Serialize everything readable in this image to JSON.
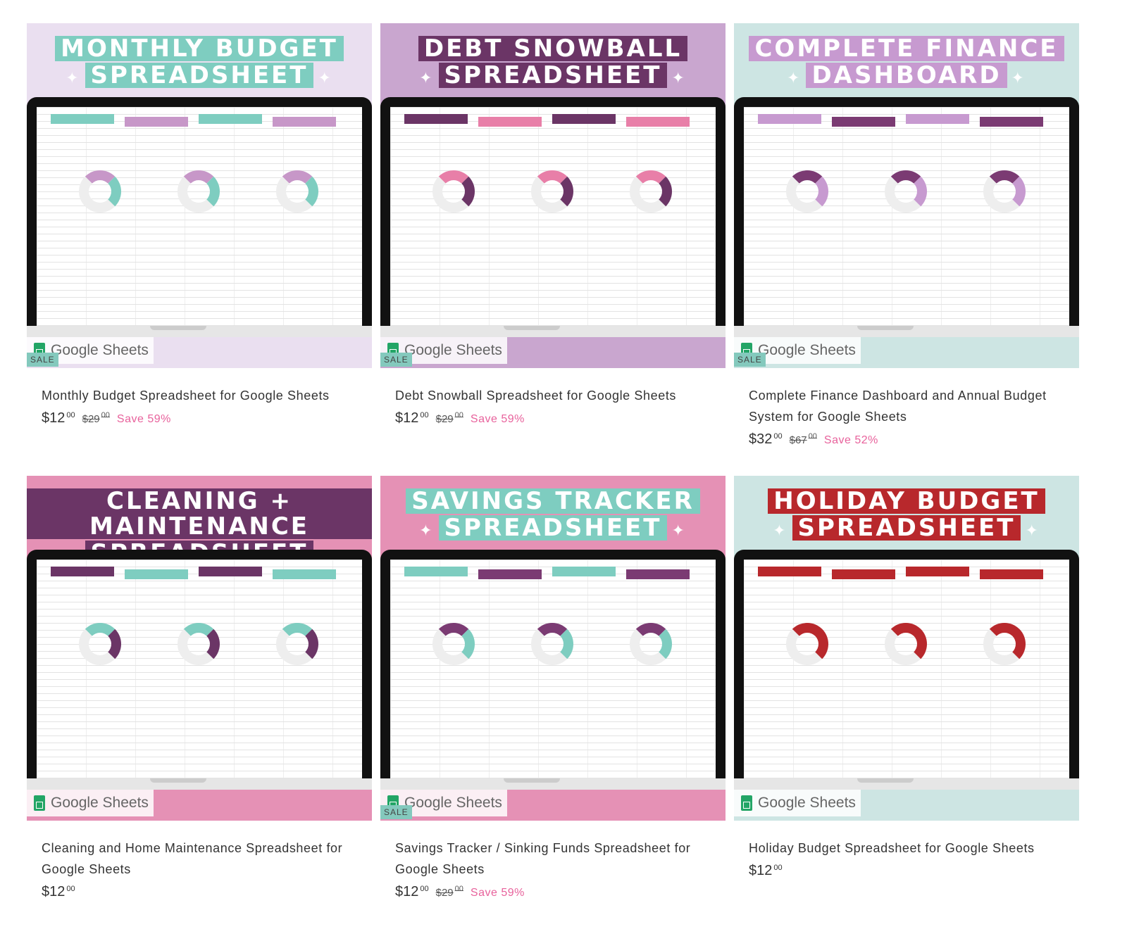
{
  "products": [
    {
      "banner": [
        "MONTHLY BUDGET",
        "SPREADSHEET"
      ],
      "bg": "#eadff0",
      "banner_color": "#7ecdc0",
      "accent": "#c797c8",
      "platform": "Google Sheets",
      "sale_badge": "SALE",
      "title": "Monthly Budget Spreadsheet for Google Sheets",
      "price": "$12",
      "price_cents": "00",
      "compare_price": "$29",
      "compare_cents": "00",
      "save": "Save 59%"
    },
    {
      "banner": [
        "DEBT SNOWBALL",
        "SPREADSHEET"
      ],
      "bg": "#c9a6cf",
      "banner_color": "#6b3566",
      "accent": "#e87fa8",
      "platform": "Google Sheets",
      "sale_badge": "SALE",
      "title": "Debt Snowball Spreadsheet for Google Sheets",
      "price": "$12",
      "price_cents": "00",
      "compare_price": "$29",
      "compare_cents": "00",
      "save": "Save 59%"
    },
    {
      "banner": [
        "COMPLETE FINANCE",
        "DASHBOARD"
      ],
      "bg": "#cde5e3",
      "banner_color": "#c79ad0",
      "accent": "#7b3b73",
      "platform": "Google Sheets",
      "sale_badge": "SALE",
      "title": "Complete Finance Dashboard and Annual Budget System for Google Sheets",
      "price": "$32",
      "price_cents": "00",
      "compare_price": "$67",
      "compare_cents": "00",
      "save": "Save 52%"
    },
    {
      "banner": [
        "CLEANING + MAINTENANCE",
        "SPREADSHEET"
      ],
      "bg": "#e591b5",
      "banner_color": "#6b3566",
      "accent": "#7ecdc0",
      "platform": "Google Sheets",
      "sale_badge": "",
      "title": "Cleaning and Home Maintenance Spreadsheet for Google Sheets",
      "price": "$12",
      "price_cents": "00",
      "compare_price": "",
      "compare_cents": "",
      "save": ""
    },
    {
      "banner": [
        "SAVINGS TRACKER",
        "SPREADSHEET"
      ],
      "bg": "#e591b5",
      "banner_color": "#7ecdc0",
      "accent": "#7b3b73",
      "platform": "Google Sheets",
      "sale_badge": "SALE",
      "title": "Savings Tracker / Sinking Funds Spreadsheet for Google Sheets",
      "price": "$12",
      "price_cents": "00",
      "compare_price": "$29",
      "compare_cents": "00",
      "save": "Save 59%"
    },
    {
      "banner": [
        "HOLIDAY BUDGET",
        "SPREADSHEET"
      ],
      "bg": "#cde5e3",
      "banner_color": "#b8282c",
      "accent": "#b8282c",
      "platform": "Google Sheets",
      "sale_badge": "",
      "title": "Holiday Budget Spreadsheet for Google Sheets",
      "price": "$12",
      "price_cents": "00",
      "compare_price": "",
      "compare_cents": "",
      "save": ""
    }
  ]
}
